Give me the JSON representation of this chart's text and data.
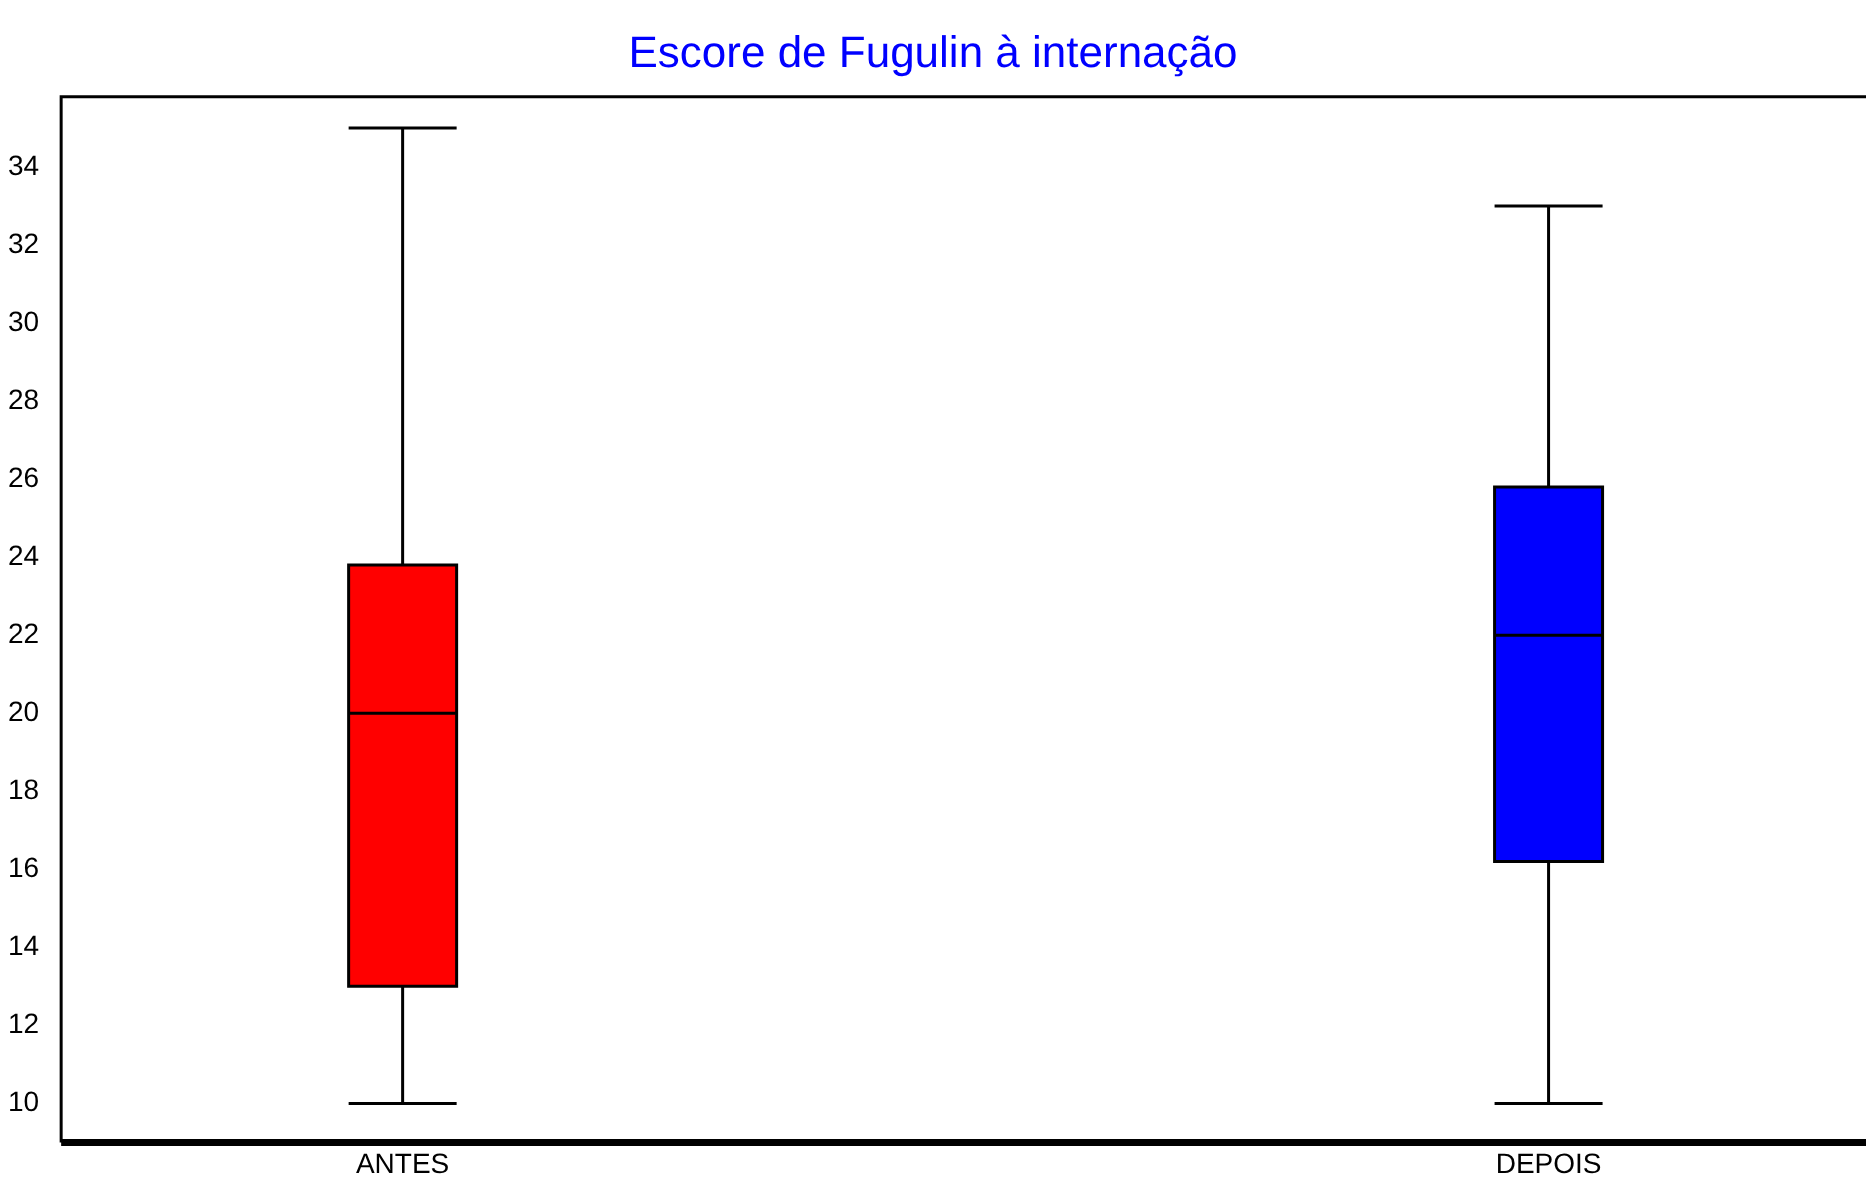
{
  "chart_data": {
    "type": "box",
    "title": "Escore de Fugulin à internação",
    "categories": [
      "ANTES",
      "DEPOIS"
    ],
    "boxes": [
      {
        "low": 10,
        "q1": 13,
        "median": 20,
        "q3": 23.8,
        "high": 35
      },
      {
        "low": 10,
        "q1": 16.2,
        "median": 22,
        "q3": 25.8,
        "high": 33
      }
    ],
    "colors": [
      "#ff0000",
      "#0000ff"
    ],
    "ylim": [
      9,
      35.8
    ],
    "yticks": [
      10,
      12,
      14,
      16,
      18,
      20,
      22,
      24,
      26,
      28,
      30,
      32,
      34
    ],
    "grid": false,
    "legend": false
  }
}
